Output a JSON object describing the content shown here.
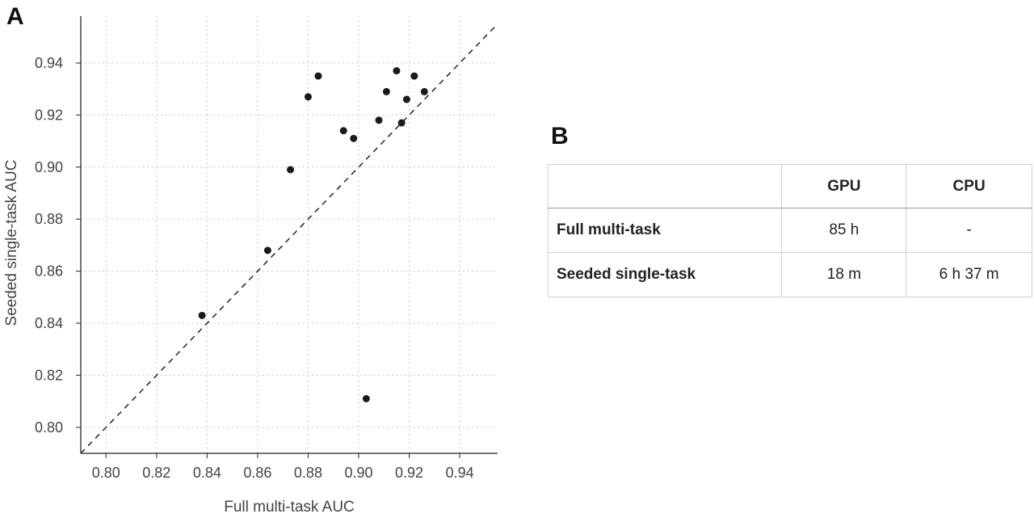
{
  "panel_a_letter": "A",
  "panel_b_letter": "B",
  "chart_data": {
    "type": "scatter",
    "xlabel": "Full multi-task AUC",
    "ylabel": "Seeded single-task AUC",
    "xlim": [
      0.79,
      0.955
    ],
    "ylim": [
      0.79,
      0.958
    ],
    "xticks": [
      0.8,
      0.82,
      0.84,
      0.86,
      0.88,
      0.9,
      0.92,
      0.94
    ],
    "yticks": [
      0.8,
      0.82,
      0.84,
      0.86,
      0.88,
      0.9,
      0.92,
      0.94
    ],
    "tick_labels": [
      "0.80",
      "0.82",
      "0.84",
      "0.86",
      "0.88",
      "0.90",
      "0.92",
      "0.94"
    ],
    "grid": true,
    "reference_line": "y = x, dashed",
    "points": [
      {
        "x": 0.838,
        "y": 0.843
      },
      {
        "x": 0.864,
        "y": 0.868
      },
      {
        "x": 0.873,
        "y": 0.899
      },
      {
        "x": 0.88,
        "y": 0.927
      },
      {
        "x": 0.884,
        "y": 0.935
      },
      {
        "x": 0.894,
        "y": 0.914
      },
      {
        "x": 0.898,
        "y": 0.911
      },
      {
        "x": 0.903,
        "y": 0.811
      },
      {
        "x": 0.908,
        "y": 0.918
      },
      {
        "x": 0.911,
        "y": 0.929
      },
      {
        "x": 0.915,
        "y": 0.937
      },
      {
        "x": 0.917,
        "y": 0.917
      },
      {
        "x": 0.919,
        "y": 0.926
      },
      {
        "x": 0.922,
        "y": 0.935
      },
      {
        "x": 0.926,
        "y": 0.929
      }
    ]
  },
  "table": {
    "headers": [
      "",
      "GPU",
      "CPU"
    ],
    "rows": [
      {
        "label": "Full multi-task",
        "gpu": "85 h",
        "cpu": "-"
      },
      {
        "label": "Seeded single-task",
        "gpu": "18 m",
        "cpu": "6 h 37 m"
      }
    ]
  }
}
